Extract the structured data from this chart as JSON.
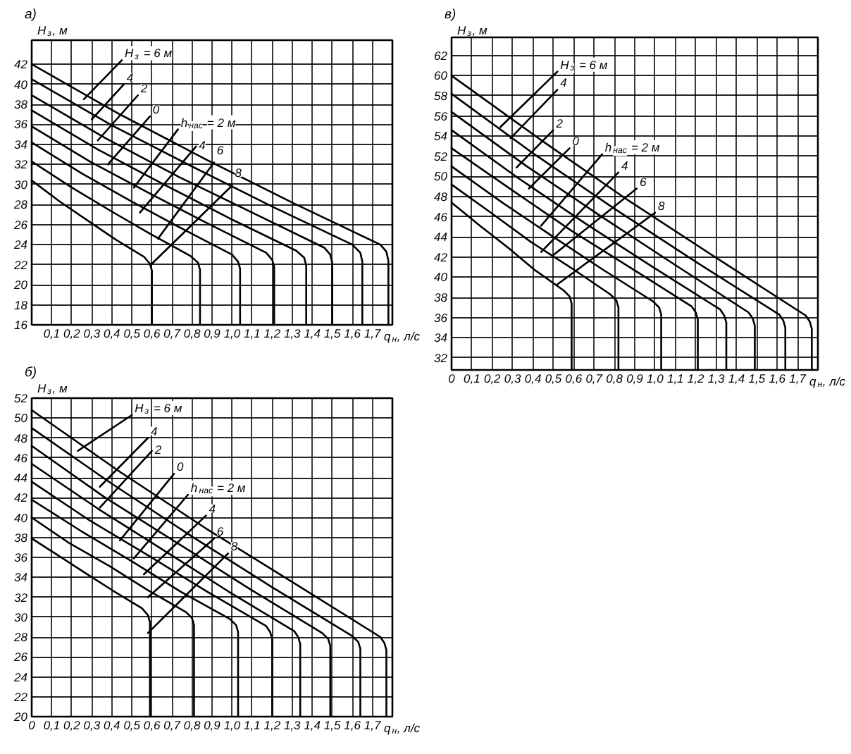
{
  "chart_data": [
    {
      "type": "line",
      "title": "а)",
      "xlabel": "q$_{н}$, л/с",
      "ylabel": "H$_{з}$, м",
      "xlim": [
        0,
        1.8
      ],
      "ylim": [
        16,
        44.4
      ],
      "xticks": [
        {
          "value": 0.1,
          "label": "0,1"
        },
        {
          "value": 0.2,
          "label": "0,2"
        },
        {
          "value": 0.3,
          "label": "0,3"
        },
        {
          "value": 0.4,
          "label": "0,4"
        },
        {
          "value": 0.5,
          "label": "0,5"
        },
        {
          "value": 0.6,
          "label": "0,6"
        },
        {
          "value": 0.7,
          "label": "0,7"
        },
        {
          "value": 0.8,
          "label": "0,8"
        },
        {
          "value": 0.9,
          "label": "0,9"
        },
        {
          "value": 1.0,
          "label": "1,0"
        },
        {
          "value": 1.1,
          "label": "1,1"
        },
        {
          "value": 1.2,
          "label": "1,2"
        },
        {
          "value": 1.3,
          "label": "1,3"
        },
        {
          "value": 1.4,
          "label": "1,4"
        },
        {
          "value": 1.5,
          "label": "1,5"
        },
        {
          "value": 1.6,
          "label": "1,6"
        },
        {
          "value": 1.7,
          "label": "1,7"
        }
      ],
      "yticks": [
        16,
        18,
        20,
        22,
        24,
        26,
        28,
        30,
        32,
        34,
        36,
        38,
        40,
        42
      ],
      "grid": true,
      "series": [
        {
          "color": "#000000",
          "x": [
            0,
            0.44,
            0.87,
            1.31,
            1.74,
            1.77,
            1.78,
            1.78
          ],
          "values": [
            42,
            37.0,
            32.5,
            28.1,
            24.0,
            23.3,
            22.4,
            16
          ]
        },
        {
          "color": "#000000",
          "x": [
            0,
            0.4,
            0.8,
            1.2,
            1.6,
            1.64,
            1.65,
            1.65
          ],
          "values": [
            40.5,
            35.9,
            31.8,
            27.8,
            24.0,
            23.2,
            22.3,
            16
          ]
        },
        {
          "color": "#000000",
          "x": [
            0,
            0.37,
            0.73,
            1.1,
            1.46,
            1.49,
            1.5,
            1.5
          ],
          "values": [
            38.9,
            34.6,
            30.8,
            27.2,
            23.7,
            23.0,
            22.2,
            16
          ]
        },
        {
          "color": "#000000",
          "x": [
            0,
            0.33,
            0.66,
            0.99,
            1.32,
            1.36,
            1.37,
            1.37
          ],
          "values": [
            37.4,
            33.5,
            30.0,
            26.6,
            23.4,
            22.7,
            21.9,
            16
          ]
        },
        {
          "color": "#000000",
          "x": [
            0,
            0.29,
            0.59,
            0.88,
            1.17,
            1.2,
            1.21,
            1.21
          ],
          "values": [
            35.8,
            32.3,
            29.1,
            26.1,
            23.2,
            22.5,
            21.8,
            16
          ]
        },
        {
          "color": "#000000",
          "x": [
            0,
            0.25,
            0.5,
            0.75,
            1.0,
            1.03,
            1.04,
            1.04
          ],
          "values": [
            34.2,
            31.1,
            28.3,
            25.6,
            23.0,
            22.3,
            21.6,
            16
          ]
        },
        {
          "color": "#000000",
          "x": [
            0,
            0.2,
            0.4,
            0.59,
            0.79,
            0.83,
            0.84,
            0.84
          ],
          "values": [
            32.3,
            29.7,
            27.3,
            25.1,
            22.9,
            22.2,
            21.5,
            16
          ]
        },
        {
          "color": "#000000",
          "x": [
            0,
            0.14,
            0.28,
            0.42,
            0.56,
            0.59,
            0.6,
            0.6
          ],
          "values": [
            30.4,
            28.3,
            26.4,
            24.5,
            22.8,
            22.1,
            21.4,
            16
          ]
        },
        {
          "name": "H$_{з}$ = 6 м",
          "color": "#000000",
          "x": [
            0.26,
            0.45
          ],
          "values": [
            38.5,
            42.4
          ]
        },
        {
          "name": "4",
          "color": "#000000",
          "x": [
            0.3,
            0.46
          ],
          "values": [
            36.5,
            40.0
          ]
        },
        {
          "name": "2",
          "color": "#000000",
          "x": [
            0.33,
            0.53
          ],
          "values": [
            34.4,
            38.9
          ]
        },
        {
          "name": "0",
          "color": "#000000",
          "x": [
            0.38,
            0.59
          ],
          "values": [
            32.0,
            36.8
          ]
        },
        {
          "name": "h$_{нас}$ = 2 м",
          "color": "#000000",
          "x": [
            0.51,
            0.73
          ],
          "values": [
            29.7,
            35.5
          ]
        },
        {
          "name": "4",
          "color": "#000000",
          "x": [
            0.54,
            0.82
          ],
          "values": [
            27.2,
            33.8
          ]
        },
        {
          "name": "6",
          "color": "#000000",
          "x": [
            0.63,
            0.91
          ],
          "values": [
            24.6,
            32.2
          ]
        },
        {
          "name": "8",
          "color": "#000000",
          "x": [
            0.6,
            1.0
          ],
          "values": [
            22.1,
            29.9
          ]
        }
      ]
    },
    {
      "type": "line",
      "title": "в)",
      "xlabel": "q$_{н}$, л/с",
      "ylabel": "H$_{з}$, м",
      "xlim": [
        0,
        1.8
      ],
      "ylim": [
        30.8,
        63.8
      ],
      "xticks": [
        0,
        {
          "value": 0.1,
          "label": "0,1"
        },
        {
          "value": 0.2,
          "label": "0,2"
        },
        {
          "value": 0.3,
          "label": "0,3"
        },
        {
          "value": 0.4,
          "label": "0,4"
        },
        {
          "value": 0.5,
          "label": "0,5"
        },
        {
          "value": 0.6,
          "label": "0,6"
        },
        {
          "value": 0.7,
          "label": "0,7"
        },
        {
          "value": 0.8,
          "label": "0,8"
        },
        {
          "value": 0.9,
          "label": "0,9"
        },
        {
          "value": 1.0,
          "label": "1,0"
        },
        {
          "value": 1.1,
          "label": "1,1"
        },
        {
          "value": 1.2,
          "label": "1,2"
        },
        {
          "value": 1.3,
          "label": "1,3"
        },
        {
          "value": 1.4,
          "label": "1,4"
        },
        {
          "value": 1.5,
          "label": "1,5"
        },
        {
          "value": 1.6,
          "label": "1,6"
        },
        {
          "value": 1.7,
          "label": "1,7"
        }
      ],
      "yticks": [
        32,
        34,
        36,
        38,
        40,
        42,
        44,
        46,
        48,
        50,
        52,
        54,
        56,
        58,
        60,
        62
      ],
      "grid": true,
      "series": [
        {
          "color": "#000000",
          "x": [
            0,
            0.44,
            0.87,
            1.31,
            1.74,
            1.76,
            1.77,
            1.77
          ],
          "values": [
            60.0,
            53.6,
            47.6,
            41.8,
            36.2,
            35.6,
            34.9,
            30.8
          ]
        },
        {
          "color": "#000000",
          "x": [
            0,
            0.4,
            0.8,
            1.21,
            1.61,
            1.63,
            1.64,
            1.64
          ],
          "values": [
            58.2,
            52.3,
            46.8,
            41.4,
            36.3,
            35.7,
            35.0,
            30.8
          ]
        },
        {
          "color": "#000000",
          "x": [
            0,
            0.37,
            0.73,
            1.1,
            1.46,
            1.48,
            1.49,
            1.49
          ],
          "values": [
            56.4,
            51.0,
            46.1,
            41.2,
            36.5,
            35.9,
            35.2,
            30.8
          ]
        },
        {
          "color": "#000000",
          "x": [
            0,
            0.33,
            0.66,
            0.99,
            1.32,
            1.34,
            1.35,
            1.35
          ],
          "values": [
            54.6,
            49.8,
            45.3,
            41.0,
            36.8,
            36.2,
            35.5,
            30.8
          ]
        },
        {
          "color": "#000000",
          "x": [
            0,
            0.3,
            0.59,
            0.89,
            1.18,
            1.2,
            1.21,
            1.21
          ],
          "values": [
            52.8,
            48.6,
            44.6,
            40.8,
            37.1,
            36.5,
            35.8,
            30.8
          ]
        },
        {
          "color": "#000000",
          "x": [
            0,
            0.25,
            0.5,
            0.74,
            0.99,
            1.02,
            1.03,
            1.03
          ],
          "values": [
            51.0,
            47.4,
            44.0,
            40.8,
            37.6,
            37.0,
            36.3,
            30.8
          ]
        },
        {
          "color": "#000000",
          "x": [
            0,
            0.2,
            0.39,
            0.59,
            0.78,
            0.81,
            0.82,
            0.82
          ],
          "values": [
            49.2,
            46.3,
            43.5,
            40.9,
            38.3,
            37.7,
            37.0,
            30.8
          ]
        },
        {
          "color": "#000000",
          "x": [
            0,
            0.14,
            0.28,
            0.41,
            0.55,
            0.58,
            0.59,
            0.59
          ],
          "values": [
            47.4,
            45.1,
            42.9,
            40.7,
            38.7,
            38.1,
            37.4,
            30.8
          ]
        },
        {
          "name": "H$_{з}$ = 6 м",
          "color": "#000000",
          "x": [
            0.24,
            0.52
          ],
          "values": [
            54.9,
            60.4
          ]
        },
        {
          "name": "4",
          "color": "#000000",
          "x": [
            0.29,
            0.52
          ],
          "values": [
            53.8,
            58.6
          ]
        },
        {
          "name": "2",
          "color": "#000000",
          "x": [
            0.32,
            0.5
          ],
          "values": [
            50.9,
            54.6
          ]
        },
        {
          "name": "0",
          "color": "#000000",
          "x": [
            0.38,
            0.58
          ],
          "values": [
            48.8,
            52.8
          ]
        },
        {
          "name": "h$_{нас}$ = 2 м",
          "color": "#000000",
          "x": [
            0.44,
            0.74
          ],
          "values": [
            45.1,
            52.2
          ]
        },
        {
          "name": "4",
          "color": "#000000",
          "x": [
            0.44,
            0.82
          ],
          "values": [
            42.5,
            50.4
          ]
        },
        {
          "name": "6",
          "color": "#000000",
          "x": [
            0.5,
            0.91
          ],
          "values": [
            42.2,
            48.8
          ]
        },
        {
          "name": "8",
          "color": "#000000",
          "x": [
            0.52,
            1.0
          ],
          "values": [
            39.3,
            46.4
          ]
        }
      ]
    },
    {
      "type": "line",
      "title": "б)",
      "xlabel": "q$_{н}$, л/с",
      "ylabel": "H$_{з}$, м",
      "xlim": [
        0,
        1.8
      ],
      "ylim": [
        20,
        52
      ],
      "xticks": [
        0,
        {
          "value": 0.1,
          "label": "0,1"
        },
        {
          "value": 0.2,
          "label": "0,2"
        },
        {
          "value": 0.3,
          "label": "0,3"
        },
        {
          "value": 0.4,
          "label": "0,4"
        },
        {
          "value": 0.5,
          "label": "0,5"
        },
        {
          "value": 0.6,
          "label": "0,6"
        },
        {
          "value": 0.7,
          "label": "0,7"
        },
        {
          "value": 0.8,
          "label": "0,8"
        },
        {
          "value": 0.9,
          "label": "0,9"
        },
        {
          "value": 1.0,
          "label": "1,0"
        },
        {
          "value": 1.1,
          "label": "1,1"
        },
        {
          "value": 1.2,
          "label": "1,2"
        },
        {
          "value": 1.3,
          "label": "1,3"
        },
        {
          "value": 1.4,
          "label": "1,4"
        },
        {
          "value": 1.5,
          "label": "1,5"
        },
        {
          "value": 1.6,
          "label": "1,6"
        },
        {
          "value": 1.7,
          "label": "1,7"
        }
      ],
      "yticks": [
        20,
        22,
        24,
        26,
        28,
        30,
        32,
        34,
        36,
        38,
        40,
        42,
        44,
        46,
        48,
        50,
        52
      ],
      "grid": true,
      "series": [
        {
          "color": "#000000",
          "x": [
            0,
            0.44,
            0.87,
            1.31,
            1.74,
            1.76,
            1.77,
            1.77
          ],
          "values": [
            50.8,
            44.6,
            38.9,
            33.4,
            28.0,
            27.4,
            26.7,
            20
          ]
        },
        {
          "color": "#000000",
          "x": [
            0,
            0.4,
            0.8,
            1.2,
            1.6,
            1.63,
            1.64,
            1.64
          ],
          "values": [
            49.0,
            43.4,
            38.1,
            33.0,
            28.1,
            27.5,
            26.8,
            20
          ]
        },
        {
          "color": "#000000",
          "x": [
            0,
            0.36,
            0.73,
            1.09,
            1.45,
            1.48,
            1.49,
            1.49
          ],
          "values": [
            47.2,
            42.1,
            37.4,
            32.8,
            28.4,
            27.8,
            27.1,
            20
          ]
        },
        {
          "color": "#000000",
          "x": [
            0,
            0.33,
            0.66,
            0.98,
            1.31,
            1.33,
            1.34,
            1.34
          ],
          "values": [
            45.4,
            40.9,
            36.7,
            32.6,
            28.6,
            28.0,
            27.3,
            20
          ]
        },
        {
          "color": "#000000",
          "x": [
            0,
            0.29,
            0.59,
            0.88,
            1.17,
            1.19,
            1.2,
            1.2
          ],
          "values": [
            43.6,
            39.7,
            36.1,
            32.5,
            29.1,
            28.5,
            27.8,
            20
          ]
        },
        {
          "color": "#000000",
          "x": [
            0,
            0.25,
            0.5,
            0.74,
            0.99,
            1.02,
            1.03,
            1.03
          ],
          "values": [
            41.8,
            38.6,
            35.6,
            32.6,
            29.8,
            29.2,
            28.5,
            20
          ]
        },
        {
          "color": "#000000",
          "x": [
            0,
            0.19,
            0.39,
            0.58,
            0.77,
            0.8,
            0.81,
            0.81
          ],
          "values": [
            40.0,
            37.4,
            35.1,
            32.7,
            30.5,
            29.9,
            29.2,
            20
          ]
        },
        {
          "color": "#000000",
          "x": [
            0,
            0.14,
            0.27,
            0.41,
            0.55,
            0.58,
            0.59,
            0.59
          ],
          "values": [
            37.9,
            36.1,
            34.4,
            32.6,
            30.9,
            30.2,
            29.5,
            20
          ]
        },
        {
          "name": "H$_{з}$ = 6 м",
          "color": "#000000",
          "x": [
            0.23,
            0.5
          ],
          "values": [
            46.7,
            50.3
          ]
        },
        {
          "name": "4",
          "color": "#000000",
          "x": [
            0.34,
            0.58
          ],
          "values": [
            43.1,
            48.0
          ]
        },
        {
          "name": "2",
          "color": "#000000",
          "x": [
            0.34,
            0.6
          ],
          "values": [
            41.0,
            46.7
          ]
        },
        {
          "name": "0",
          "color": "#000000",
          "x": [
            0.44,
            0.71
          ],
          "values": [
            37.7,
            44.4
          ]
        },
        {
          "name": "h$_{нас}$ = 2 м",
          "color": "#000000",
          "x": [
            0.51,
            0.78
          ],
          "values": [
            35.9,
            42.3
          ]
        },
        {
          "name": "4",
          "color": "#000000",
          "x": [
            0.56,
            0.87
          ],
          "values": [
            34.3,
            40.2
          ]
        },
        {
          "name": "6",
          "color": "#000000",
          "x": [
            0.58,
            0.91
          ],
          "values": [
            32.0,
            37.9
          ]
        },
        {
          "name": "8",
          "color": "#000000",
          "x": [
            0.58,
            0.98
          ],
          "values": [
            28.4,
            36.4
          ]
        }
      ]
    }
  ]
}
